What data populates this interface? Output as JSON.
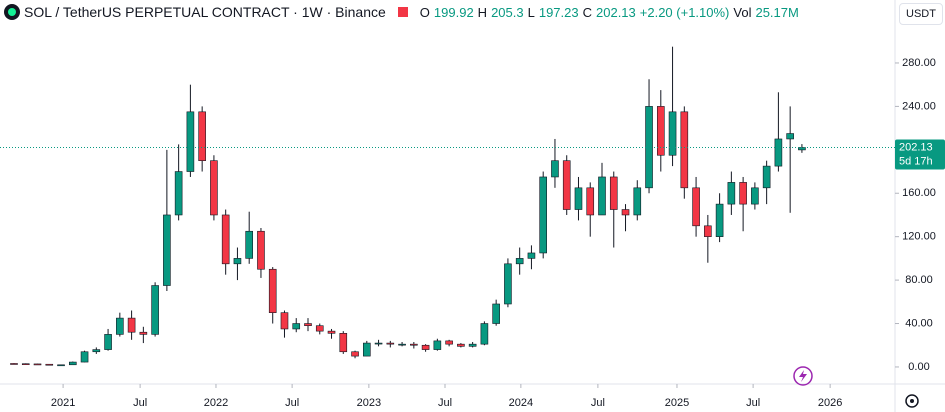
{
  "chart_data": {
    "type": "candlestick",
    "title": "SOL / TetherUS PERPETUAL CONTRACT · 1W · Binance",
    "header": {
      "o": "O",
      "h": "H",
      "l": "L",
      "c": "C",
      "change": "+2.20 (+1.10%)",
      "vol": "Vol",
      "vol_value": "25.17M"
    },
    "unit": "USDT",
    "countdown": "5d 17h",
    "up_color": "#089981",
    "down_color": "#f23645",
    "x": [
      0,
      4,
      8,
      12,
      16,
      20,
      24,
      28,
      32,
      36,
      40,
      44,
      48,
      52,
      56,
      60,
      64,
      68,
      72,
      76,
      80,
      84,
      88,
      92,
      96,
      100,
      104,
      108,
      112,
      116,
      120,
      124,
      128,
      132,
      136,
      140,
      144,
      148,
      152,
      156,
      160,
      164,
      168,
      172,
      176,
      180,
      184,
      188,
      192,
      196,
      200,
      204,
      208,
      212,
      216,
      220,
      224,
      228,
      232,
      236,
      240,
      244,
      248,
      252,
      256,
      260,
      264,
      268
    ],
    "open": [
      3.2,
      3.0,
      2.8,
      2.5,
      1.8,
      2.0,
      4.5,
      14,
      16,
      30,
      45,
      32,
      30,
      75,
      140,
      180,
      235,
      190,
      140,
      95,
      100,
      125,
      90,
      50,
      35,
      40,
      38,
      33,
      31,
      14,
      10,
      22,
      22,
      21,
      21,
      20,
      16,
      24,
      21,
      19,
      21,
      40,
      58,
      95,
      100,
      105,
      175,
      190,
      145,
      165,
      140,
      175,
      145,
      140,
      165,
      240,
      195,
      235,
      165,
      130,
      120,
      150,
      170,
      150,
      165,
      185,
      210,
      199.92
    ],
    "high": [
      3.5,
      3.3,
      3.0,
      2.6,
      2.2,
      5,
      15,
      18,
      35,
      50,
      52,
      37,
      78,
      200,
      205,
      260,
      240,
      195,
      145,
      110,
      143,
      128,
      92,
      52,
      45,
      45,
      40,
      35,
      33,
      15,
      24,
      25,
      24,
      23,
      23,
      21,
      26,
      25,
      22,
      23,
      42,
      62,
      100,
      110,
      112,
      180,
      210,
      195,
      175,
      170,
      188,
      180,
      150,
      172,
      265,
      255,
      295,
      240,
      175,
      140,
      160,
      180,
      175,
      170,
      190,
      253,
      240,
      205.3
    ],
    "low": [
      2.8,
      2.6,
      2.3,
      1.5,
      1.6,
      1.9,
      4.3,
      12,
      15,
      28,
      25,
      22,
      28,
      70,
      135,
      175,
      180,
      135,
      85,
      80,
      95,
      82,
      40,
      27,
      32,
      33,
      30,
      26,
      12,
      8,
      10,
      19,
      18,
      19,
      17,
      14,
      15,
      19,
      18,
      18,
      20,
      38,
      55,
      85,
      90,
      100,
      165,
      140,
      135,
      120,
      140,
      110,
      125,
      135,
      160,
      180,
      185,
      155,
      120,
      96,
      115,
      140,
      125,
      145,
      150,
      180,
      142,
      197.23
    ],
    "close": [
      3.0,
      2.8,
      2.5,
      1.8,
      2.0,
      4.5,
      14,
      16,
      30,
      45,
      32,
      30,
      75,
      140,
      180,
      235,
      190,
      140,
      95,
      100,
      125,
      90,
      50,
      35,
      40,
      38,
      33,
      31,
      14,
      10,
      22,
      22,
      21,
      21,
      20,
      16,
      24,
      21,
      19,
      21,
      40,
      58,
      95,
      100,
      105,
      175,
      190,
      145,
      165,
      140,
      175,
      145,
      140,
      165,
      240,
      195,
      235,
      165,
      130,
      120,
      150,
      170,
      150,
      165,
      185,
      210,
      215,
      202.13
    ],
    "xlim": [
      -4.76,
      299.66
    ],
    "xticks": [
      {
        "value": 16.7,
        "label": "2021"
      },
      {
        "value": 42.9,
        "label": "Jul"
      },
      {
        "value": 68.7,
        "label": "2022"
      },
      {
        "value": 94.6,
        "label": "Jul"
      },
      {
        "value": 120.7,
        "label": "2023"
      },
      {
        "value": 146.6,
        "label": "Jul"
      },
      {
        "value": 172.4,
        "label": "2024"
      },
      {
        "value": 198.6,
        "label": "Jul"
      },
      {
        "value": 225.5,
        "label": "2025"
      },
      {
        "value": 251.4,
        "label": "Jul"
      },
      {
        "value": 277.6,
        "label": "2026"
      }
    ],
    "ylim": [
      -15.7,
      338
    ],
    "yticks": [
      {
        "value": 0,
        "label": "0.00"
      },
      {
        "value": 40,
        "label": "40.00"
      },
      {
        "value": 80,
        "label": "80.00"
      },
      {
        "value": 120,
        "label": "120.00"
      },
      {
        "value": 160,
        "label": "160.00"
      },
      {
        "value": 200,
        "label": "200.00"
      },
      {
        "value": 240,
        "label": "240.00"
      },
      {
        "value": 280,
        "label": "280.00"
      }
    ]
  }
}
